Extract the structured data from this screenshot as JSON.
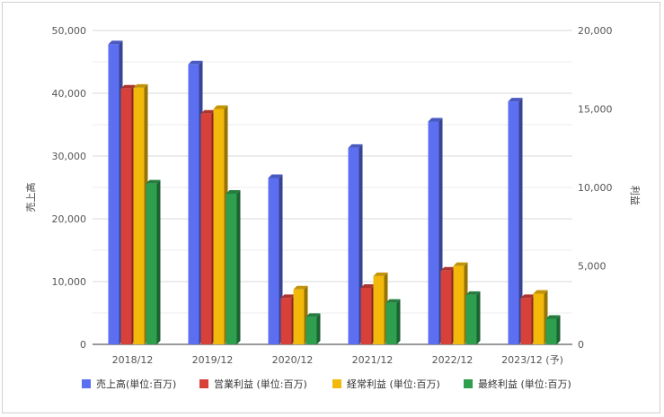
{
  "chart_data": {
    "type": "bar",
    "categories": [
      "2018/12",
      "2019/12",
      "2020/12",
      "2021/12",
      "2022/12",
      "2023/12 (予)"
    ],
    "series": [
      {
        "name": "売上高(単位:百万)",
        "axis": "left",
        "color": "#5b6ff0",
        "values": [
          47800,
          44600,
          26500,
          31300,
          35500,
          38700
        ]
      },
      {
        "name": "営業利益 (単位:百万)",
        "axis": "right",
        "color": "#d7413a",
        "values": [
          16300,
          14700,
          2950,
          3600,
          4700,
          2950
        ]
      },
      {
        "name": "経常利益 (単位:百万)",
        "axis": "right",
        "color": "#f2b90a",
        "values": [
          16350,
          15000,
          3500,
          4350,
          4990,
          3230
        ]
      },
      {
        "name": "最終利益 (単位:百万)",
        "axis": "right",
        "color": "#2e9e4f",
        "values": [
          10250,
          9600,
          1750,
          2650,
          3150,
          1630
        ]
      }
    ],
    "ylabel": "売上高",
    "y2label": "利益",
    "ylim": [
      0,
      50000
    ],
    "y2lim": [
      0,
      20000
    ],
    "yticks": [
      "0",
      "10,000",
      "20,000",
      "30,000",
      "40,000",
      "50,000"
    ],
    "y2ticks": [
      "0",
      "5,000",
      "10,000",
      "15,000",
      "20,000"
    ],
    "legend_position": "bottom",
    "grid": true
  }
}
